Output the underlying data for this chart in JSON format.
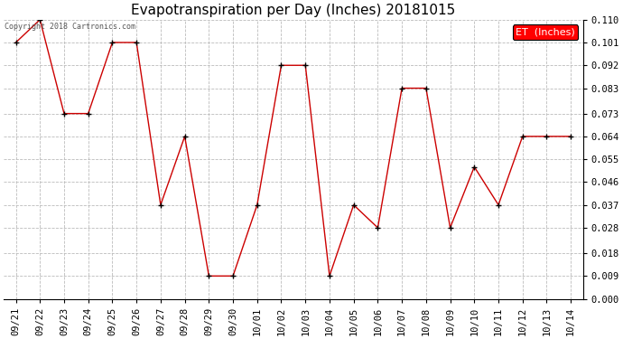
{
  "title": "Evapotranspiration per Day (Inches) 20181015",
  "copyright": "Copyright 2018 Cartronics.com",
  "legend_label": "ET  (Inches)",
  "x_labels": [
    "09/21",
    "09/22",
    "09/23",
    "09/24",
    "09/25",
    "09/26",
    "09/27",
    "09/28",
    "09/29",
    "09/30",
    "10/01",
    "10/02",
    "10/03",
    "10/04",
    "10/05",
    "10/06",
    "10/07",
    "10/08",
    "10/09",
    "10/10",
    "10/11",
    "10/12",
    "10/13",
    "10/14"
  ],
  "y_values": [
    0.101,
    0.11,
    0.073,
    0.073,
    0.101,
    0.101,
    0.037,
    0.064,
    0.009,
    0.009,
    0.037,
    0.092,
    0.092,
    0.009,
    0.037,
    0.028,
    0.083,
    0.083,
    0.028,
    0.052,
    0.037,
    0.064,
    0.064,
    0.064
  ],
  "line_color": "#cc0000",
  "marker_color": "#000000",
  "background_color": "#ffffff",
  "grid_color": "#bbbbbb",
  "ylim": [
    0.0,
    0.11
  ],
  "yticks": [
    0.0,
    0.009,
    0.018,
    0.028,
    0.037,
    0.046,
    0.055,
    0.064,
    0.073,
    0.083,
    0.092,
    0.101,
    0.11
  ],
  "title_fontsize": 11,
  "tick_fontsize": 7.5,
  "copyright_fontsize": 6,
  "legend_fontsize": 8
}
